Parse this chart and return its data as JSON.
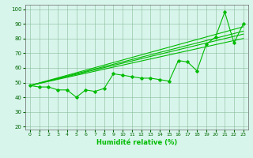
{
  "xlabel": "Humidité relative (%)",
  "background_color": "#d8f5ec",
  "grid_color": "#88bb99",
  "line_color": "#00bb00",
  "xlim": [
    -0.5,
    23.5
  ],
  "ylim": [
    18,
    103
  ],
  "yticks": [
    20,
    30,
    40,
    50,
    60,
    70,
    80,
    90,
    100
  ],
  "xticks": [
    0,
    1,
    2,
    3,
    4,
    5,
    6,
    7,
    8,
    9,
    10,
    11,
    12,
    13,
    14,
    15,
    16,
    17,
    18,
    19,
    20,
    21,
    22,
    23
  ],
  "zigzag": [
    48,
    47,
    47,
    45,
    45,
    40,
    45,
    44,
    46,
    56,
    55,
    54,
    53,
    53,
    52,
    51,
    65,
    64,
    58,
    76,
    81,
    98,
    77,
    90
  ],
  "trend_lines": [
    [
      [
        0,
        23
      ],
      [
        48,
        88
      ]
    ],
    [
      [
        0,
        23
      ],
      [
        48,
        85
      ]
    ],
    [
      [
        0,
        23
      ],
      [
        48,
        83
      ]
    ],
    [
      [
        0,
        23
      ],
      [
        48,
        80
      ]
    ]
  ],
  "figsize": [
    3.2,
    2.0
  ],
  "dpi": 100
}
